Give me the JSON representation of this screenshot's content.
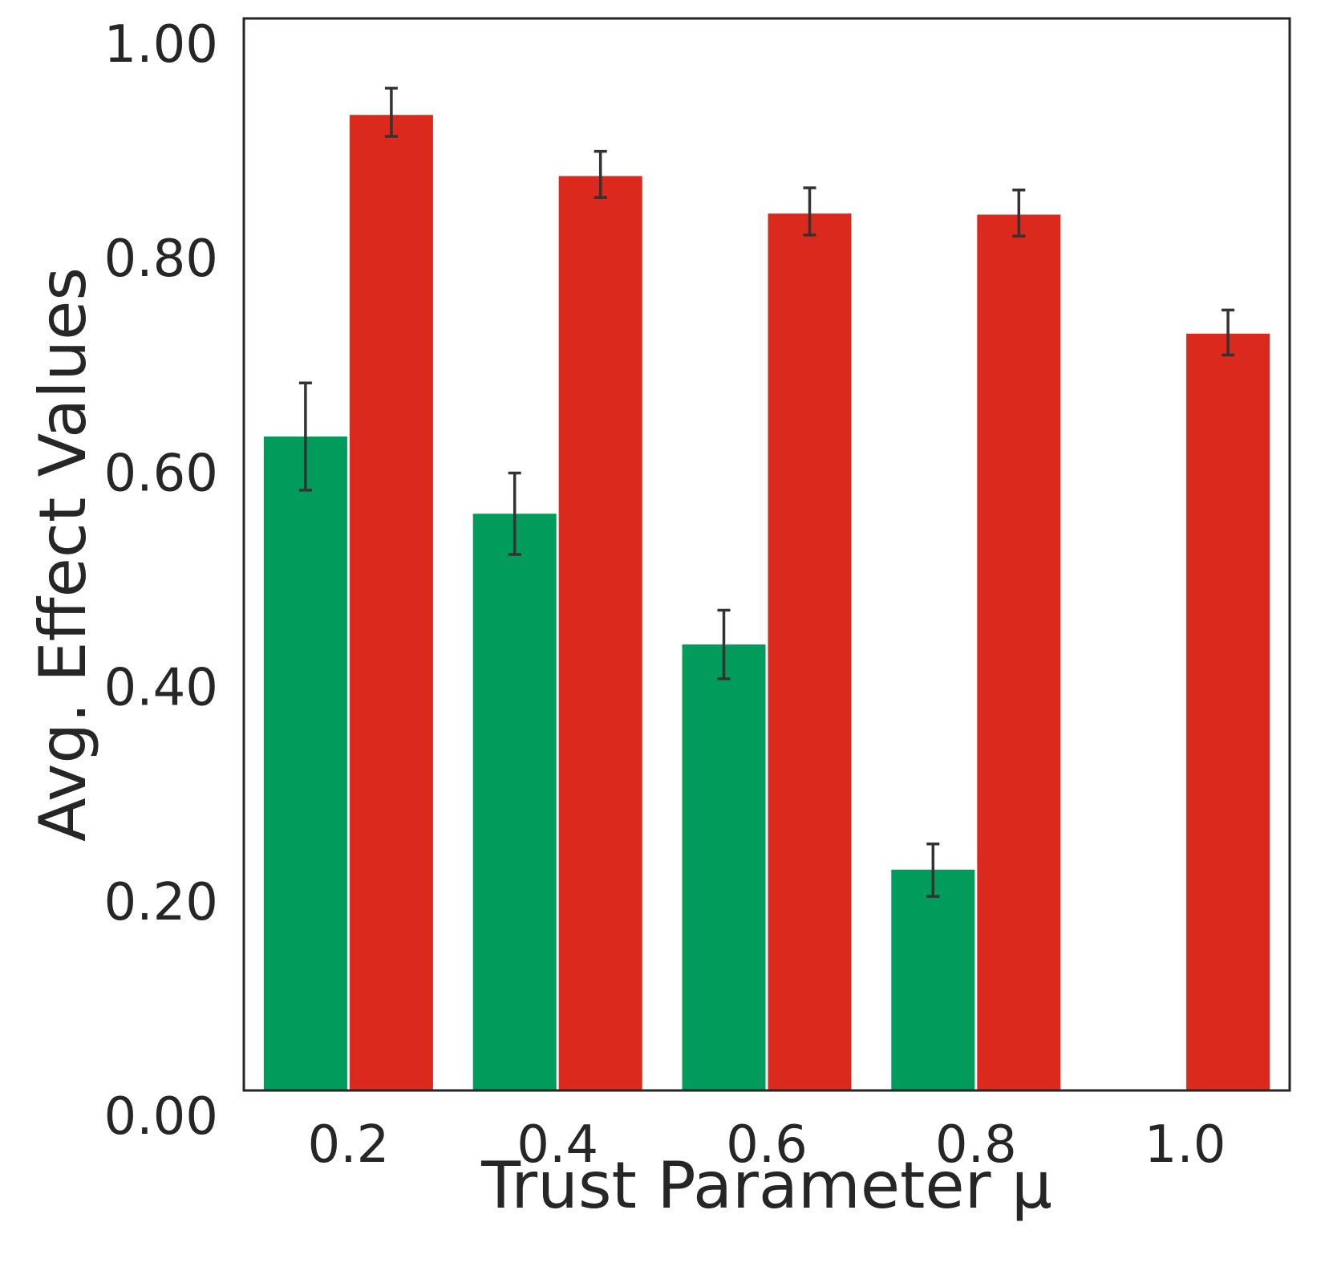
{
  "chart_data": {
    "type": "bar",
    "xlabel": "Trust Parameter μ",
    "ylabel": "Avg. Effect Values",
    "categories": [
      "0.2",
      "0.4",
      "0.6",
      "0.8",
      "1.0"
    ],
    "yticks": [
      "0.00",
      "0.20",
      "0.40",
      "0.60",
      "0.80",
      "1.00"
    ],
    "ylim": [
      0,
      1.0
    ],
    "grid": false,
    "legend": "none",
    "series": [
      {
        "color": "#019b5b",
        "values": [
          0.61,
          0.538,
          0.416,
          0.206,
          0.0
        ],
        "err_low": [
          0.56,
          0.5,
          0.384,
          0.181,
          null
        ],
        "err_high": [
          0.66,
          0.576,
          0.448,
          0.23,
          null
        ]
      },
      {
        "color": "#dc291e",
        "values": [
          0.91,
          0.853,
          0.818,
          0.817,
          0.706
        ],
        "err_low": [
          0.89,
          0.833,
          0.798,
          0.797,
          0.686
        ],
        "err_high": [
          0.935,
          0.876,
          0.842,
          0.84,
          0.728
        ]
      }
    ]
  }
}
